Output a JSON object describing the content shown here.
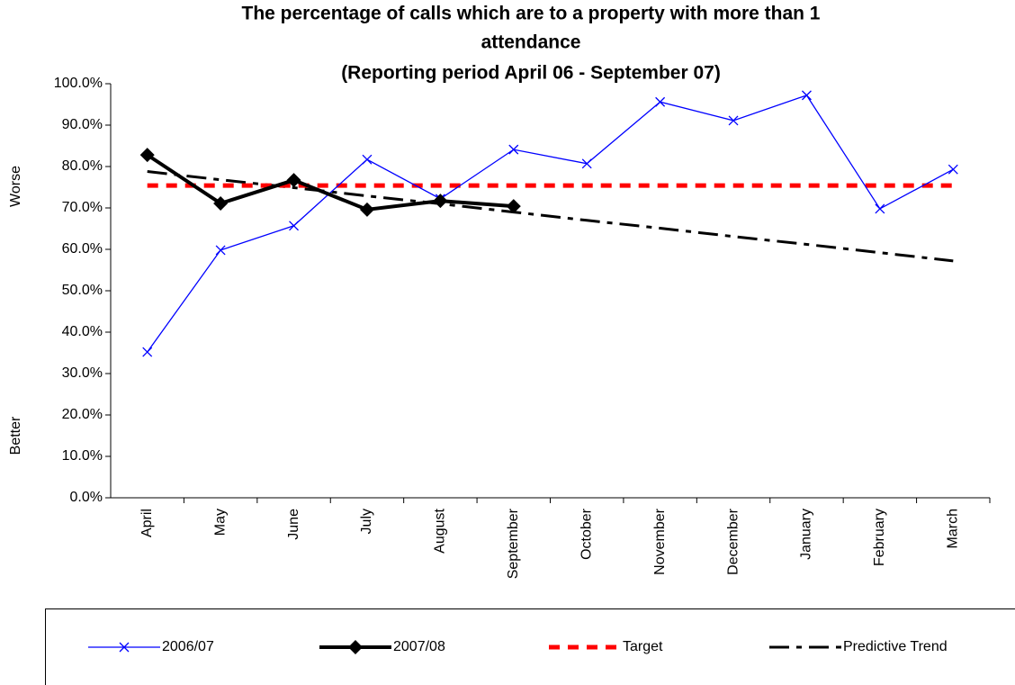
{
  "chart_data": {
    "type": "line",
    "title": [
      "The percentage of calls which are to a property with more than 1",
      "attendance",
      "(Reporting period April 06 - September 07)"
    ],
    "y_axis_labels": [
      "Worse",
      "Better"
    ],
    "categories": [
      "April",
      "May",
      "June",
      "July",
      "August",
      "September",
      "October",
      "November",
      "December",
      "January",
      "February",
      "March"
    ],
    "series": [
      {
        "name": "2006/07",
        "color": "#0000ff",
        "marker": "x",
        "values": [
          35.2,
          59.8,
          65.7,
          81.7,
          72.2,
          84.1,
          80.7,
          95.6,
          91.1,
          97.2,
          69.8,
          79.3
        ]
      },
      {
        "name": "2007/08",
        "color": "#000000",
        "marker": "diamond",
        "values": [
          82.8,
          71.1,
          76.7,
          69.6,
          71.7,
          70.4,
          null,
          null,
          null,
          null,
          null,
          null
        ]
      },
      {
        "name": "Target",
        "color": "#ff0000",
        "style": "dashed",
        "values": [
          75.4,
          75.4,
          75.4,
          75.4,
          75.4,
          75.4,
          75.4,
          75.4,
          75.4,
          75.4,
          75.4,
          75.4
        ]
      },
      {
        "name": "Predictive Trend",
        "color": "#000000",
        "style": "dashdot",
        "values": [
          78.8,
          76.8,
          74.9,
          72.9,
          71.0,
          69.0,
          67.0,
          65.1,
          63.1,
          61.2,
          59.2,
          57.2
        ]
      }
    ],
    "ylim": [
      0,
      100
    ],
    "yticks": [
      {
        "value": 0,
        "label": "0.0%"
      },
      {
        "value": 10,
        "label": "10.0%"
      },
      {
        "value": 20,
        "label": "20.0%"
      },
      {
        "value": 30,
        "label": "30.0%"
      },
      {
        "value": 40,
        "label": "40.0%"
      },
      {
        "value": 50,
        "label": "50.0%"
      },
      {
        "value": 60,
        "label": "60.0%"
      },
      {
        "value": 70,
        "label": "70.0%"
      },
      {
        "value": 80,
        "label": "80.0%"
      },
      {
        "value": 90,
        "label": "90.0%"
      },
      {
        "value": 100,
        "label": "100.0%"
      }
    ],
    "legend": "bottom"
  }
}
